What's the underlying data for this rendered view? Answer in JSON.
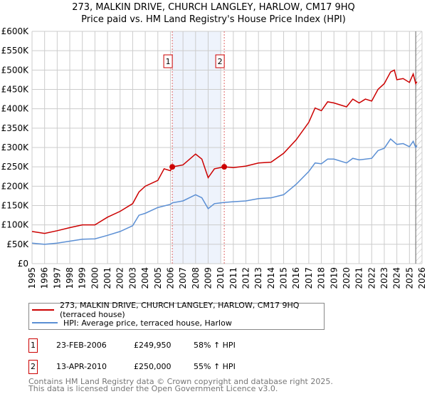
{
  "chart_data": {
    "type": "line",
    "title": "273, MALKIN DRIVE, CHURCH LANGLEY, HARLOW, CM17 9HQ",
    "subtitle": "Price paid vs. HM Land Registry's House Price Index (HPI)",
    "xlim": [
      1995,
      2026
    ],
    "ylim": [
      0,
      600000
    ],
    "x_ticks": [
      "1995",
      "1996",
      "1997",
      "1998",
      "1999",
      "2000",
      "2001",
      "2002",
      "2003",
      "2004",
      "2005",
      "2006",
      "2007",
      "2008",
      "2009",
      "2010",
      "2011",
      "2012",
      "2013",
      "2014",
      "2015",
      "2016",
      "2017",
      "2018",
      "2019",
      "2020",
      "2021",
      "2022",
      "2023",
      "2024",
      "2025",
      "2026"
    ],
    "y_ticks": [
      {
        "v": 0,
        "l": "£0"
      },
      {
        "v": 50000,
        "l": "£50K"
      },
      {
        "v": 100000,
        "l": "£100K"
      },
      {
        "v": 150000,
        "l": "£150K"
      },
      {
        "v": 200000,
        "l": "£200K"
      },
      {
        "v": 250000,
        "l": "£250K"
      },
      {
        "v": 300000,
        "l": "£300K"
      },
      {
        "v": 350000,
        "l": "£350K"
      },
      {
        "v": 400000,
        "l": "£400K"
      },
      {
        "v": 450000,
        "l": "£450K"
      },
      {
        "v": 500000,
        "l": "£500K"
      },
      {
        "v": 550000,
        "l": "£550K"
      },
      {
        "v": 600000,
        "l": "£600K"
      }
    ],
    "grid": true,
    "shaded_range": [
      2006.15,
      2010.0
    ],
    "future_hatch_from": 2025.5,
    "series": [
      {
        "name": "273, MALKIN DRIVE, CHURCH LANGLEY, HARLOW, CM17 9HQ (terraced house)",
        "color": "#cc0000",
        "x": [
          1995,
          1996,
          1997,
          1998,
          1999,
          2000,
          2001,
          2002,
          2003,
          2003.5,
          2004,
          2005,
          2005.5,
          2006,
          2006.15,
          2007,
          2008,
          2008.5,
          2009,
          2009.5,
          2010.28,
          2011,
          2012,
          2013,
          2014,
          2015,
          2016,
          2017,
          2017.5,
          2018,
          2018.5,
          2019,
          2020,
          2020.5,
          2021,
          2021.5,
          2022,
          2022.5,
          2023,
          2023.5,
          2023.8,
          2024,
          2024.5,
          2025,
          2025.3,
          2025.5,
          2025.6
        ],
        "y": [
          83000,
          78000,
          85000,
          93000,
          100000,
          100000,
          120000,
          135000,
          155000,
          185000,
          200000,
          215000,
          245000,
          240000,
          250000,
          255000,
          283000,
          270000,
          222000,
          245000,
          250000,
          248000,
          252000,
          260000,
          262000,
          285000,
          320000,
          365000,
          402000,
          395000,
          418000,
          415000,
          405000,
          425000,
          415000,
          425000,
          420000,
          450000,
          465000,
          495000,
          500000,
          475000,
          478000,
          468000,
          490000,
          465000,
          470000
        ]
      },
      {
        "name": "HPI: Average price, terraced house, Harlow",
        "color": "#5b8fd4",
        "x": [
          1995,
          1996,
          1997,
          1998,
          1999,
          2000,
          2001,
          2002,
          2003,
          2003.5,
          2004,
          2005,
          2006,
          2006.15,
          2007,
          2008,
          2008.5,
          2009,
          2009.5,
          2010.28,
          2011,
          2012,
          2013,
          2014,
          2015,
          2016,
          2017,
          2017.5,
          2018,
          2018.5,
          2019,
          2020,
          2020.5,
          2021,
          2022,
          2022.5,
          2023,
          2023.5,
          2024,
          2024.5,
          2025,
          2025.3,
          2025.5,
          2025.6
        ],
        "y": [
          53000,
          50000,
          53000,
          58000,
          63000,
          64000,
          73000,
          83000,
          98000,
          125000,
          130000,
          145000,
          153000,
          157000,
          162000,
          178000,
          170000,
          142000,
          155000,
          158000,
          160000,
          162000,
          168000,
          170000,
          178000,
          205000,
          238000,
          260000,
          258000,
          270000,
          270000,
          260000,
          272000,
          268000,
          272000,
          292000,
          298000,
          322000,
          308000,
          310000,
          302000,
          316000,
          300000,
          305000
        ]
      }
    ],
    "sales": [
      {
        "label": "1",
        "x": 2006.15,
        "y": 249950
      },
      {
        "label": "2",
        "x": 2010.28,
        "y": 250000
      }
    ]
  },
  "legend": {
    "red": "273, MALKIN DRIVE, CHURCH LANGLEY, HARLOW, CM17 9HQ (terraced house)",
    "blue": "HPI: Average price, terraced house, Harlow"
  },
  "transactions": [
    {
      "num": "1",
      "date": "23-FEB-2006",
      "price": "£249,950",
      "hpi": "58% ↑ HPI"
    },
    {
      "num": "2",
      "date": "13-APR-2010",
      "price": "£250,000",
      "hpi": "55% ↑ HPI"
    }
  ],
  "footer": {
    "line1": "Contains HM Land Registry data © Crown copyright and database right 2025.",
    "line2": "This data is licensed under the Open Government Licence v3.0."
  }
}
